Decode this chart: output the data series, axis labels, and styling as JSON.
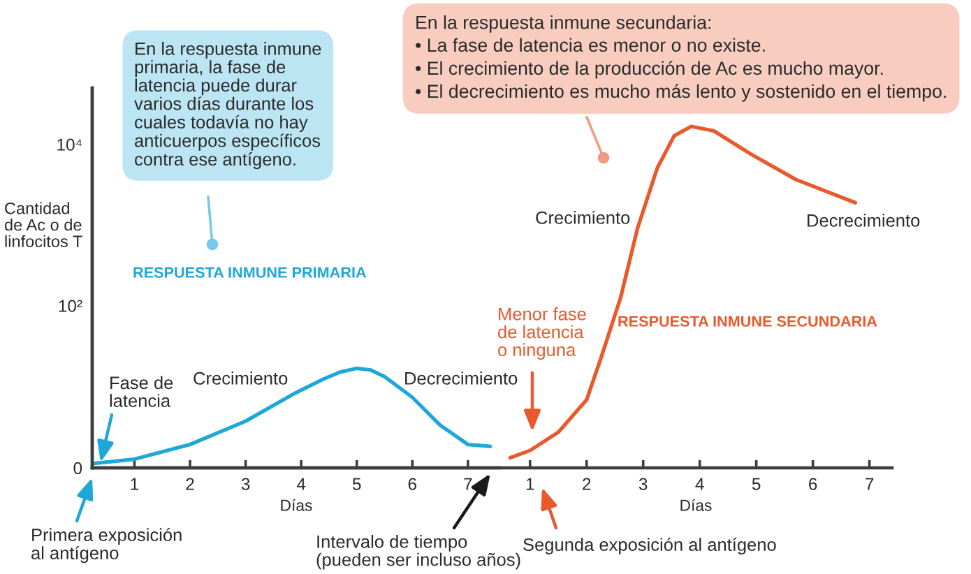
{
  "chart_data": [
    {
      "type": "line",
      "xlabel": "Días",
      "ylabel": "Cantidad\nde Ac o de\nlinfocitos T",
      "log": "y",
      "x": [
        0.24,
        1.0,
        2.0,
        3.0,
        3.9,
        4.4,
        4.7,
        5.0,
        5.25,
        5.5,
        6.0,
        6.5,
        7.0,
        7.4
      ],
      "series": [
        {
          "name": "RESPUESTA INMUNE PRIMARIA",
          "color": "#1ea7d8",
          "values": [
            1.1,
            1.25,
            1.9,
            3.7,
            8.3,
            12.3,
            15,
            16.7,
            15.9,
            13.2,
            7.3,
            3.3,
            1.9,
            1.8
          ]
        }
      ],
      "xlim": [
        0.24,
        7.58
      ],
      "xticks": [
        1,
        2,
        3,
        4,
        5,
        6,
        7
      ],
      "ylim": [
        0,
        50000
      ],
      "yticks": [
        {
          "value": 0,
          "label": "0"
        },
        {
          "value": 100,
          "label": "10²"
        },
        {
          "value": 10000,
          "label": "10⁴"
        }
      ],
      "annotations": [
        "En la respuesta inmune\nprimaria, la fase de\nlatencia puede durar\nvarios días durante los\ncuales todavía no hay\nanticuerpos específicos\ncontra ese antígeno.",
        "Fase de\nlatencia",
        "Crecimiento",
        "Decrecimiento",
        "Primera exposición\nal antígeno",
        "Intervalo de tiempo\n(pueden ser incluso años)"
      ]
    },
    {
      "type": "line",
      "xlabel": "Días",
      "tick_labels": "x",
      "log": "y",
      "x": [
        0.65,
        1.0,
        1.5,
        2.0,
        2.25,
        2.6,
        2.9,
        3.25,
        3.55,
        3.85,
        4.25,
        4.9,
        5.7,
        6.75
      ],
      "series": [
        {
          "name": "RESPUESTA INMUNE SECUNDARIA",
          "color": "#e8592c",
          "values": [
            1.3,
            1.6,
            2.7,
            6.8,
            22,
            125,
            910,
            5100,
            12800,
            16700,
            14700,
            7600,
            3660,
            1890
          ]
        }
      ],
      "xlim": [
        -6.74,
        7.4
      ],
      "xticks": [
        1,
        2,
        3,
        4,
        5,
        6,
        7
      ],
      "ylim": [
        0,
        50000
      ],
      "annotations": [
        "En la respuesta inmune secundaria:\n• La fase de latencia es menor o no existe.\n• El crecimiento de la producción de Ac es mucho mayor.\n• El decrecimiento es mucho más lento y sostenido en el tiempo.",
        "Crecimiento",
        "Decrecimiento",
        "Menor fase\nde latencia\no ninguna",
        "Segunda exposición al antígeno"
      ]
    }
  ]
}
